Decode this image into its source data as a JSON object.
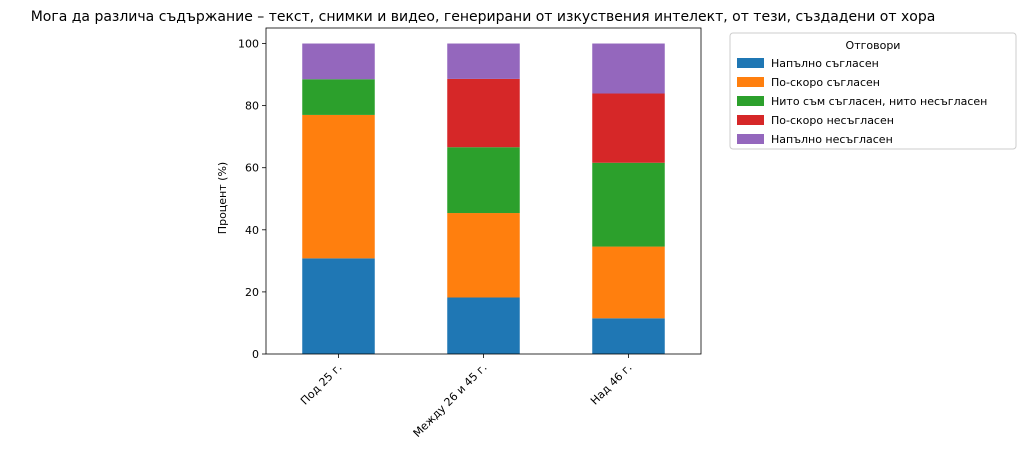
{
  "chart_data": {
    "type": "bar",
    "stacked": true,
    "title": "Мога да различа съдържание – текст, снимки и видео, генерирани от изкуствения интелект, от тези, създадени от хора",
    "xlabel": "",
    "ylabel": "Процент (%)",
    "ylim": [
      0,
      105
    ],
    "yticks": [
      0,
      20,
      40,
      60,
      80,
      100
    ],
    "categories": [
      "Под 25 г.",
      "Между 26 и 45 г.",
      "Над 46 г."
    ],
    "legend_title": "Отговори",
    "legend_position": "outside-top-right",
    "series": [
      {
        "name": "Напълно съгласен",
        "color": "#1f77b4",
        "values": [
          30.8,
          18.2,
          11.5
        ]
      },
      {
        "name": "По-скоро съгласен",
        "color": "#ff7f0e",
        "values": [
          46.2,
          27.2,
          23.1
        ]
      },
      {
        "name": "Нито съм съгласен, нито несъгласен",
        "color": "#2ca02c",
        "values": [
          11.5,
          21.2,
          27.0
        ]
      },
      {
        "name": "По-скоро несъгласен",
        "color": "#d62728",
        "values": [
          0.0,
          22.0,
          22.3
        ]
      },
      {
        "name": "Напълно несъгласен",
        "color": "#9467bd",
        "values": [
          11.5,
          11.4,
          16.1
        ]
      }
    ]
  }
}
